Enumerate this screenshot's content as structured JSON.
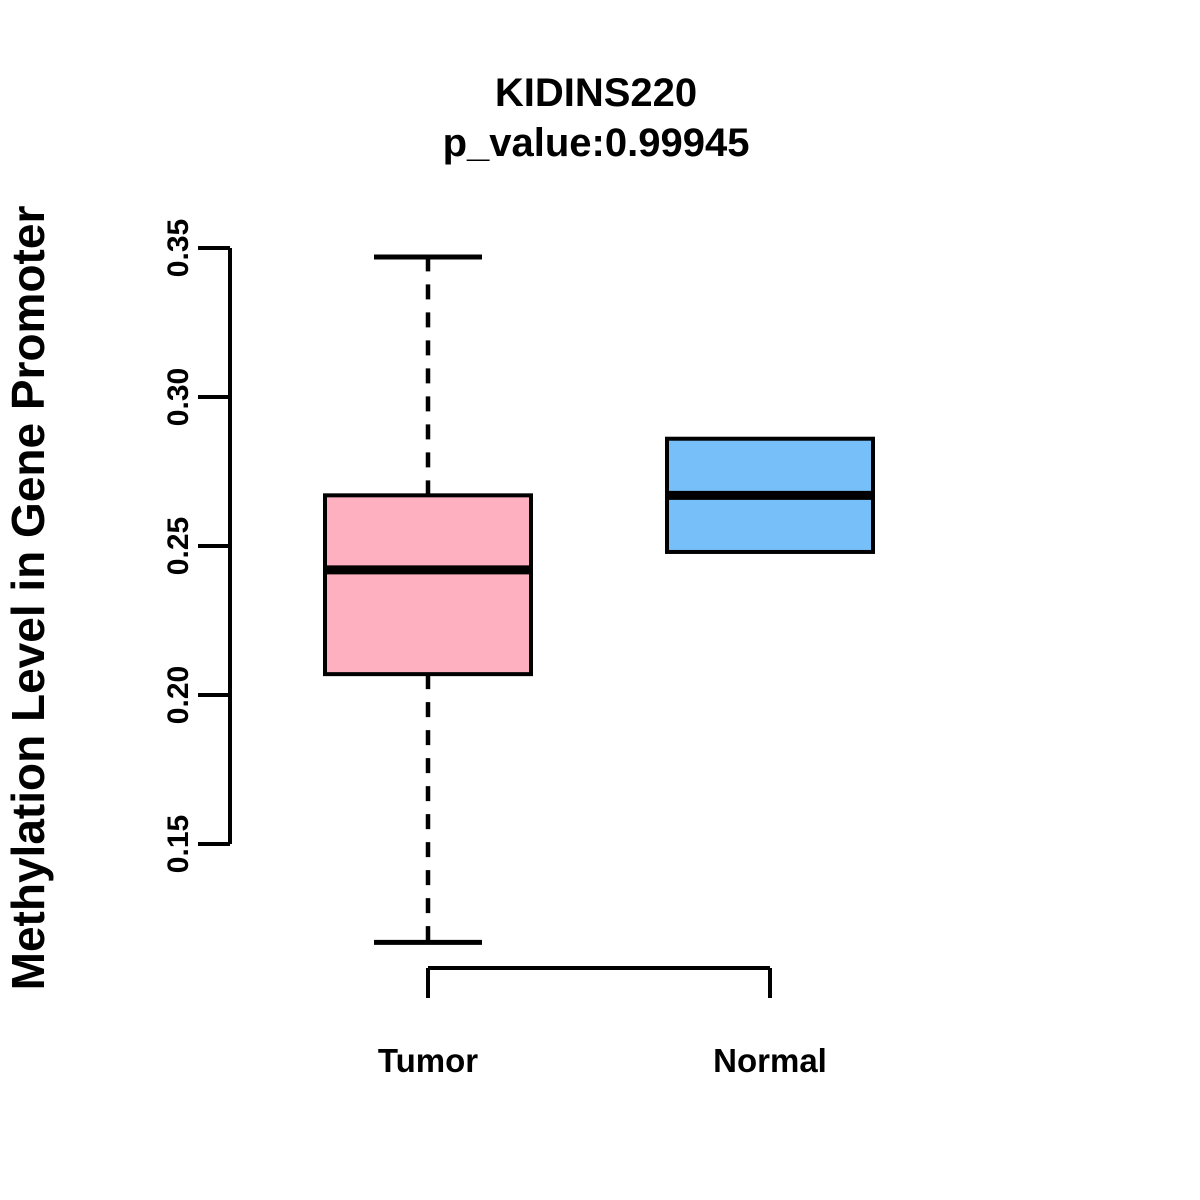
{
  "chart_data": {
    "type": "boxplot",
    "title": "KIDINS220",
    "subtitle": "p_value:0.99945",
    "ylabel": "Methylation Level in Gene Promoter",
    "xlabel": "",
    "ylim": [
      0.15,
      0.35
    ],
    "yticks": [
      "0.15",
      "0.20",
      "0.25",
      "0.30",
      "0.35"
    ],
    "grid": false,
    "legend": "none",
    "categories": [
      "Tumor",
      "Normal"
    ],
    "groups": [
      {
        "label": "Tumor",
        "fill_color": "#FFB0C0",
        "whisker_low": 0.117,
        "q1": 0.207,
        "median": 0.242,
        "q3": 0.267,
        "whisker_high": 0.347,
        "whisker_style": "dashed",
        "outliers": []
      },
      {
        "label": "Normal",
        "fill_color": "#76BFF8",
        "whisker_low": 0.248,
        "q1": 0.248,
        "median": 0.267,
        "q3": 0.286,
        "whisker_high": 0.286,
        "whisker_style": "dashed",
        "outliers": []
      }
    ]
  },
  "colors": {
    "background": "#FFFFFF",
    "box_border": "#000000",
    "axis": "#000000",
    "text": "#000000"
  }
}
